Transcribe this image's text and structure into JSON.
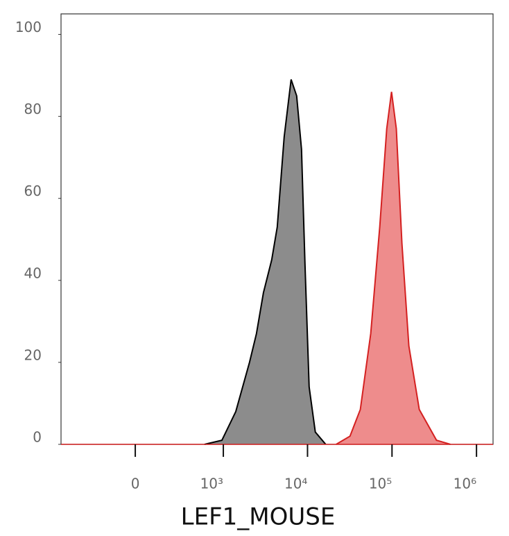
{
  "chart_data": {
    "type": "histogram-overlay",
    "x_label": "LEF1_MOUSE",
    "xscale": "arcsinh",
    "xlim": [
      -680,
      1570000
    ],
    "xticks": [
      0,
      {
        "value": 1000,
        "label": "10³"
      },
      {
        "value": 10000,
        "label": "10⁴"
      },
      {
        "value": 100000,
        "label": "10⁵"
      },
      {
        "value": 1000000,
        "label": "10⁶"
      }
    ],
    "ylim": [
      0,
      105
    ],
    "yticks": [
      0,
      20,
      40,
      60,
      80,
      100
    ],
    "series": [
      {
        "color": "#000000",
        "fill": "#8c8c8c",
        "x": [
          590,
          961,
          1409,
          2055,
          2485,
          3005,
          3764,
          4377,
          5292,
          6396,
          7437,
          8488,
          9326,
          10450,
          12370,
          16430
        ],
        "values": [
          0,
          1,
          8,
          20,
          27,
          37,
          45,
          53,
          75,
          89,
          85,
          72,
          44,
          14,
          3,
          0
        ]
      },
      {
        "color": "#d42020",
        "fill": "#ee8c8c",
        "x": [
          21810,
          31800,
          42200,
          56000,
          71550,
          86560,
          98640,
          112500,
          131000,
          158300,
          210100,
          336700,
          491000
        ],
        "values": [
          0,
          2,
          8.5,
          27,
          53,
          77,
          86,
          77,
          49,
          24,
          8.5,
          1,
          0
        ]
      }
    ]
  }
}
